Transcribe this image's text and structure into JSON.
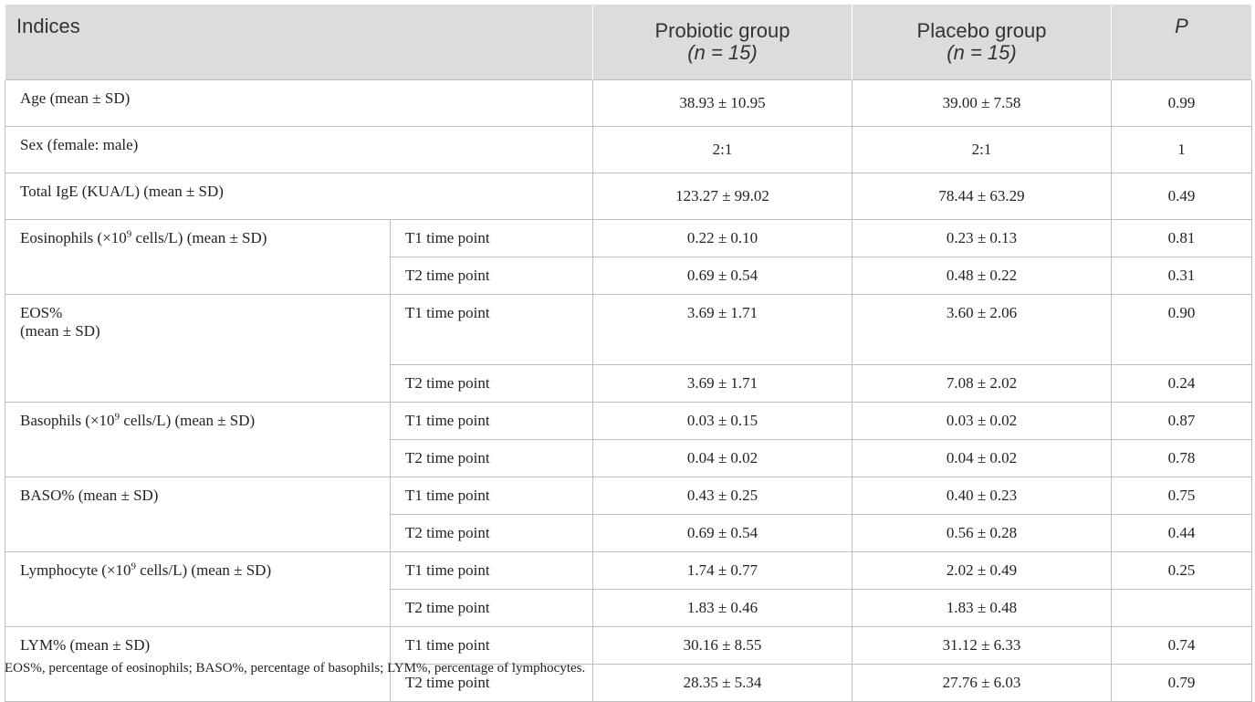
{
  "header": {
    "indices": "Indices",
    "probiotic_line1": "Probiotic group",
    "probiotic_n": "(n = 15)",
    "placebo_line1": "Placebo group",
    "placebo_n": "(n = 15)",
    "p": "P"
  },
  "rows": {
    "age": {
      "label": "Age (mean ± SD)",
      "probiotic": "38.93 ± 10.95",
      "placebo": "39.00 ± 7.58",
      "p": "0.99"
    },
    "sex": {
      "label": "Sex (female: male)",
      "probiotic": "2:1",
      "placebo": "2:1",
      "p": "1"
    },
    "ige": {
      "label": "Total IgE (KUA/L) (mean ± SD)",
      "probiotic": "123.27 ± 99.02",
      "placebo": "78.44 ± 63.29",
      "p": "0.49"
    },
    "eos": {
      "label_pre": "Eosinophils (×10",
      "label_sup": "9",
      "label_post": " cells/L) (mean ± SD)",
      "t1": {
        "tp": "T1 time point",
        "probiotic": "0.22 ± 0.10",
        "placebo": "0.23 ± 0.13",
        "p": "0.81"
      },
      "t2": {
        "tp": "T2 time point",
        "probiotic": "0.69 ± 0.54",
        "placebo": "0.48 ± 0.22",
        "p": "0.31"
      }
    },
    "eos_pct": {
      "label_line1": "EOS%",
      "label_line2": "(mean ± SD)",
      "t1": {
        "tp": "T1 time point",
        "probiotic": "3.69 ± 1.71",
        "placebo": "3.60 ± 2.06",
        "p": "0.90"
      },
      "t2": {
        "tp": "T2 time point",
        "probiotic": "3.69 ± 1.71",
        "placebo": "7.08 ± 2.02",
        "p": "0.24"
      }
    },
    "baso": {
      "label_pre": "Basophils (×10",
      "label_sup": "9",
      "label_post": " cells/L) (mean ± SD)",
      "t1": {
        "tp": "T1 time point",
        "probiotic": "0.03 ± 0.15",
        "placebo": "0.03 ± 0.02",
        "p": "0.87"
      },
      "t2": {
        "tp": "T2 time point",
        "probiotic": "0.04 ± 0.02",
        "placebo": "0.04 ± 0.02",
        "p": "0.78"
      }
    },
    "baso_pct": {
      "label": "BASO% (mean ± SD)",
      "t1": {
        "tp": "T1 time point",
        "probiotic": "0.43 ± 0.25",
        "placebo": "0.40 ± 0.23",
        "p": "0.75"
      },
      "t2": {
        "tp": "T2 time point",
        "probiotic": "0.69 ± 0.54",
        "placebo": "0.56 ± 0.28",
        "p": "0.44"
      }
    },
    "lym": {
      "label_pre": "Lymphocyte (×10",
      "label_sup": "9",
      "label_post": " cells/L) (mean ± SD)",
      "t1": {
        "tp": "T1 time point",
        "probiotic": "1.74 ± 0.77",
        "placebo": "2.02 ± 0.49",
        "p": "0.25"
      },
      "t2": {
        "tp": "T2 time point",
        "probiotic": "1.83 ± 0.46",
        "placebo": "1.83 ± 0.48",
        "p": ""
      }
    },
    "lym_pct": {
      "label": "LYM% (mean ± SD)",
      "t1": {
        "tp": "T1 time point",
        "probiotic": "30.16 ± 8.55",
        "placebo": "31.12 ± 6.33",
        "p": "0.74"
      },
      "t2": {
        "tp": "T2 time point",
        "probiotic": "28.35 ± 5.34",
        "placebo": "27.76 ± 6.03",
        "p": "0.79"
      }
    }
  },
  "footnote": "EOS%, percentage of eosinophils; BASO%, percentage of basophils; LYM%, percentage of lymphocytes."
}
